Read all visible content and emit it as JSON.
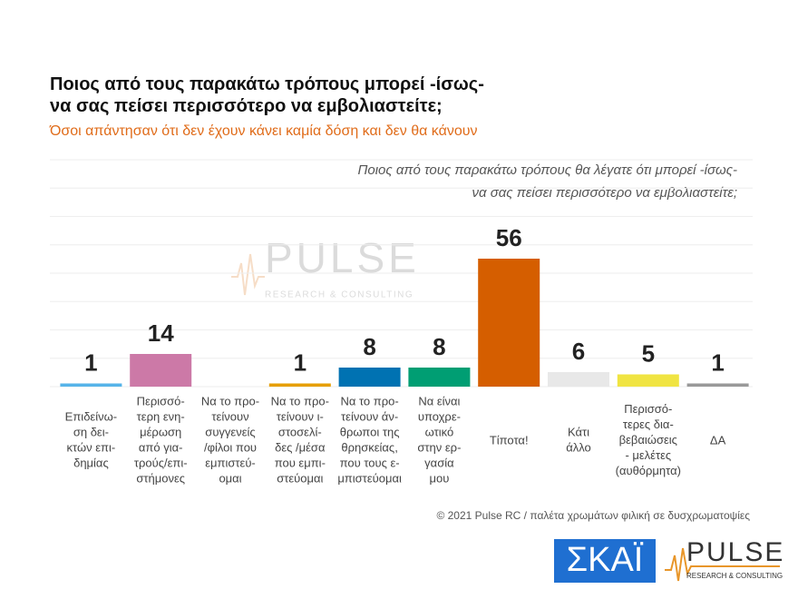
{
  "chart_data": {
    "type": "bar",
    "title": "Ποιος από τους παρακάτω τρόπους μπορεί -ίσως-\nνα σας πείσει περισσότερο να εμβολιαστείτε;",
    "subtitle": "Όσοι απάντησαν ότι δεν έχουν κάνει καμία δόση και δεν θα κάνουν",
    "annotation": "Ποιος από τους παρακάτω τρόπους θα λέγατε ότι μπορεί -ίσως-\nνα σας πείσει περισσότερο να εμβολιαστείτε;",
    "categories": [
      "Επιδείνω-\nση δει-\nκτών επι-\nδημίας",
      "Περισσό-\nτερη ενη-\nμέρωση\nαπό για-\nτρούς/επι-\nστήμονες",
      "Να το προ-\nτείνουν\nσυγγενείς\n/φίλοι που\nεμπιστεύ-\nομαι",
      "Να το προ-\nτείνουν ι-\nστοσελί-\nδες /μέσα\nπου εμπι-\nστεύομαι",
      "Να το προ-\nτείνουν άν-\nθρωποι της\nθρησκείας,\nπου τους ε-\nμπιστεύομαι",
      "Να είναι\nυποχρε-\nωτικό\nστην ερ-\nγασία\nμου",
      "Τίποτα!",
      "Κάτι\nάλλο",
      "Περισσό-\nτερες δια-\nβεβαιώσεις\n- μελέτες\n(αυθόρμητα)",
      "ΔΑ"
    ],
    "values": [
      1,
      14,
      null,
      1,
      8,
      8,
      56,
      6,
      5,
      1
    ],
    "colors": [
      "#56b4e9",
      "#cc79a7",
      "#999999",
      "#e69f00",
      "#0072b2",
      "#009e73",
      "#d55e00",
      "#e8e8e8",
      "#f0e442",
      "#999999"
    ],
    "ylim": [
      0,
      100
    ],
    "grid": true,
    "footer": "© 2021 Pulse RC  /  παλέτα χρωμάτων φιλική σε δυσχρωματοψίες",
    "watermark": {
      "name": "PULSE",
      "tagline": "RESEARCH & CONSULTING"
    },
    "logos": {
      "broadcaster": "ΣΚΑΪ",
      "pollster": "PULSE",
      "pollster_tagline": "RESEARCH & CONSULTING"
    }
  }
}
